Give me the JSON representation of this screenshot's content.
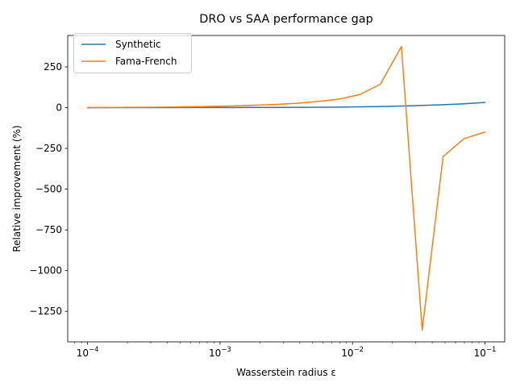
{
  "chart_data": {
    "type": "line",
    "title": "DRO vs SAA performance gap",
    "xlabel": "Wasserstein radius ε",
    "ylabel": "Relative improvement (%)",
    "xscale": "log",
    "xlim": [
      7.1e-05,
      0.000141
    ],
    "xlim_note": "",
    "x_range": [
      7.08e-05,
      0.141
    ],
    "ylim": [
      -1437,
      443
    ],
    "grid": false,
    "legend_position": "upper-left",
    "x_ticks": [
      {
        "value": 0.0001,
        "base": "10",
        "exp": "−4"
      },
      {
        "value": 0.001,
        "base": "10",
        "exp": "−3"
      },
      {
        "value": 0.01,
        "base": "10",
        "exp": "−2"
      },
      {
        "value": 0.1,
        "base": "10",
        "exp": "−1"
      }
    ],
    "y_ticks": [
      {
        "value": 250,
        "label": "250"
      },
      {
        "value": 0,
        "label": "0"
      },
      {
        "value": -250,
        "label": "−250"
      },
      {
        "value": -500,
        "label": "−500"
      },
      {
        "value": -750,
        "label": "−750"
      },
      {
        "value": -1000,
        "label": "−1000"
      },
      {
        "value": -1250,
        "label": "−1250"
      }
    ],
    "series": [
      {
        "name": "Synthetic",
        "color": "#1f77b4",
        "x": [
          0.0001,
          0.000144,
          0.000207,
          0.000298,
          0.000428,
          0.000616,
          0.000886,
          0.00127,
          0.00183,
          0.00264,
          0.00379,
          0.00546,
          0.00785,
          0.0113,
          0.0162,
          0.0234,
          0.0336,
          0.0483,
          0.0695,
          0.1
        ],
        "values": [
          0.1,
          0.2,
          0.3,
          0.4,
          0.5,
          0.6,
          0.8,
          1.0,
          1.3,
          1.6,
          2.0,
          2.6,
          3.5,
          5.0,
          7.0,
          10.0,
          13.5,
          18.0,
          24.0,
          32.0
        ]
      },
      {
        "name": "Fama-French",
        "color": "#ff7f0e",
        "x": [
          0.0001,
          0.000144,
          0.000207,
          0.000298,
          0.000428,
          0.000616,
          0.000886,
          0.00127,
          0.00183,
          0.00264,
          0.00379,
          0.00546,
          0.00785,
          0.0113,
          0.0162,
          0.0234,
          0.0336,
          0.0483,
          0.0695,
          0.1
        ],
        "values": [
          0,
          1,
          2,
          3,
          4,
          6,
          8,
          11,
          15,
          20,
          27,
          38,
          52,
          80,
          143,
          375,
          -1365,
          -300,
          -190,
          -150
        ]
      }
    ]
  }
}
